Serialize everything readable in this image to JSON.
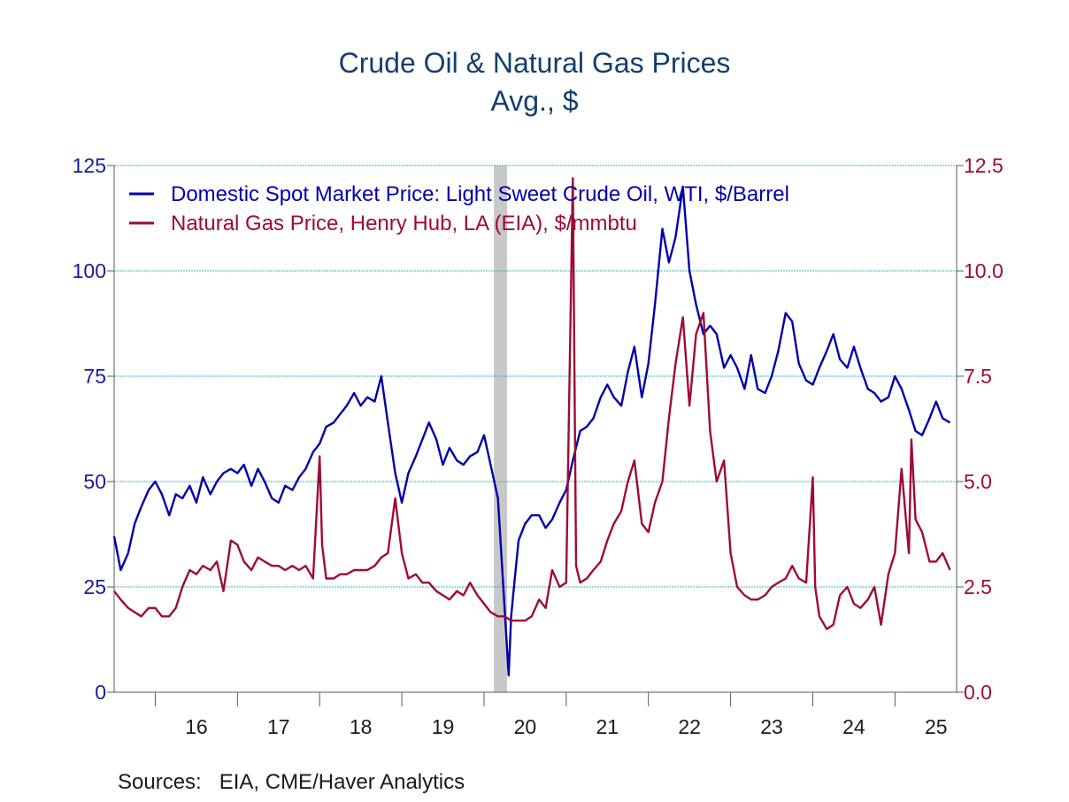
{
  "title": "Crude Oil & Natural Gas Prices",
  "subtitle": "Avg., $",
  "sources_label": "Sources:   EIA, CME/Haver Analytics",
  "colors": {
    "oil": "#0000aa",
    "gas": "#9e0b32",
    "grid": "#2fb5c4",
    "axis": "#5a5a5a",
    "left_axis_text": "#1a1aa0",
    "right_axis_text": "#9e0b32",
    "recession": "#c8c8c8"
  },
  "chart_data": {
    "type": "line",
    "x_range": [
      2015.5,
      2025.75
    ],
    "x_tick_labels": [
      "16",
      "17",
      "18",
      "19",
      "20",
      "21",
      "22",
      "23",
      "24",
      "25"
    ],
    "recession_band": [
      2020.12,
      2020.28
    ],
    "left_axis": {
      "ylim": [
        0,
        125
      ],
      "ticks": [
        "0",
        "25",
        "50",
        "75",
        "100",
        "125"
      ]
    },
    "right_axis": {
      "ylim": [
        0,
        12.5
      ],
      "ticks": [
        "0.0",
        "2.5",
        "5.0",
        "7.5",
        "10.0",
        "12.5"
      ]
    },
    "grid": true,
    "legend_position": "top-left",
    "series": [
      {
        "name": "Domestic Spot Market Price: Light Sweet Crude Oil, WTI, $/Barrel",
        "axis": "left",
        "points": [
          [
            2015.5,
            37
          ],
          [
            2015.58,
            29
          ],
          [
            2015.67,
            33
          ],
          [
            2015.75,
            40
          ],
          [
            2015.83,
            44
          ],
          [
            2015.92,
            48
          ],
          [
            2016.0,
            50
          ],
          [
            2016.08,
            47
          ],
          [
            2016.17,
            42
          ],
          [
            2016.25,
            47
          ],
          [
            2016.33,
            46
          ],
          [
            2016.42,
            49
          ],
          [
            2016.5,
            45
          ],
          [
            2016.58,
            51
          ],
          [
            2016.67,
            47
          ],
          [
            2016.75,
            50
          ],
          [
            2016.83,
            52
          ],
          [
            2016.92,
            53
          ],
          [
            2017.0,
            52
          ],
          [
            2017.08,
            54
          ],
          [
            2017.17,
            49
          ],
          [
            2017.25,
            53
          ],
          [
            2017.33,
            50
          ],
          [
            2017.42,
            46
          ],
          [
            2017.5,
            45
          ],
          [
            2017.58,
            49
          ],
          [
            2017.67,
            48
          ],
          [
            2017.75,
            51
          ],
          [
            2017.83,
            53
          ],
          [
            2017.92,
            57
          ],
          [
            2018.0,
            59
          ],
          [
            2018.08,
            63
          ],
          [
            2018.17,
            64
          ],
          [
            2018.25,
            66
          ],
          [
            2018.33,
            68
          ],
          [
            2018.42,
            71
          ],
          [
            2018.5,
            68
          ],
          [
            2018.58,
            70
          ],
          [
            2018.67,
            69
          ],
          [
            2018.75,
            75
          ],
          [
            2018.83,
            64
          ],
          [
            2018.92,
            52
          ],
          [
            2019.0,
            45
          ],
          [
            2019.08,
            52
          ],
          [
            2019.17,
            56
          ],
          [
            2019.25,
            60
          ],
          [
            2019.33,
            64
          ],
          [
            2019.42,
            60
          ],
          [
            2019.5,
            54
          ],
          [
            2019.58,
            58
          ],
          [
            2019.67,
            55
          ],
          [
            2019.75,
            54
          ],
          [
            2019.83,
            56
          ],
          [
            2019.92,
            57
          ],
          [
            2020.0,
            61
          ],
          [
            2020.08,
            54
          ],
          [
            2020.17,
            46
          ],
          [
            2020.25,
            20
          ],
          [
            2020.3,
            4
          ],
          [
            2020.33,
            18
          ],
          [
            2020.38,
            28
          ],
          [
            2020.42,
            36
          ],
          [
            2020.5,
            40
          ],
          [
            2020.58,
            42
          ],
          [
            2020.67,
            42
          ],
          [
            2020.75,
            39
          ],
          [
            2020.83,
            41
          ],
          [
            2020.92,
            45
          ],
          [
            2021.0,
            48
          ],
          [
            2021.08,
            55
          ],
          [
            2021.17,
            62
          ],
          [
            2021.25,
            63
          ],
          [
            2021.33,
            65
          ],
          [
            2021.42,
            70
          ],
          [
            2021.5,
            73
          ],
          [
            2021.58,
            70
          ],
          [
            2021.67,
            68
          ],
          [
            2021.75,
            76
          ],
          [
            2021.83,
            82
          ],
          [
            2021.92,
            70
          ],
          [
            2022.0,
            78
          ],
          [
            2022.08,
            92
          ],
          [
            2022.17,
            110
          ],
          [
            2022.25,
            102
          ],
          [
            2022.33,
            108
          ],
          [
            2022.42,
            120
          ],
          [
            2022.5,
            100
          ],
          [
            2022.58,
            92
          ],
          [
            2022.67,
            85
          ],
          [
            2022.75,
            87
          ],
          [
            2022.83,
            85
          ],
          [
            2022.92,
            77
          ],
          [
            2023.0,
            80
          ],
          [
            2023.08,
            77
          ],
          [
            2023.17,
            72
          ],
          [
            2023.25,
            80
          ],
          [
            2023.33,
            72
          ],
          [
            2023.42,
            71
          ],
          [
            2023.5,
            75
          ],
          [
            2023.58,
            81
          ],
          [
            2023.67,
            90
          ],
          [
            2023.75,
            88
          ],
          [
            2023.83,
            78
          ],
          [
            2023.92,
            74
          ],
          [
            2024.0,
            73
          ],
          [
            2024.08,
            77
          ],
          [
            2024.17,
            81
          ],
          [
            2024.25,
            85
          ],
          [
            2024.33,
            79
          ],
          [
            2024.42,
            77
          ],
          [
            2024.5,
            82
          ],
          [
            2024.58,
            77
          ],
          [
            2024.67,
            72
          ],
          [
            2024.75,
            71
          ],
          [
            2024.83,
            69
          ],
          [
            2024.92,
            70
          ],
          [
            2025.0,
            75
          ],
          [
            2025.08,
            72
          ],
          [
            2025.17,
            67
          ],
          [
            2025.25,
            62
          ],
          [
            2025.33,
            61
          ],
          [
            2025.42,
            65
          ],
          [
            2025.5,
            69
          ],
          [
            2025.58,
            65
          ],
          [
            2025.67,
            64
          ]
        ]
      },
      {
        "name": "Natural Gas Price, Henry Hub, LA (EIA), $/mmbtu",
        "axis": "right",
        "points": [
          [
            2015.5,
            2.4
          ],
          [
            2015.58,
            2.2
          ],
          [
            2015.67,
            2.0
          ],
          [
            2015.75,
            1.9
          ],
          [
            2015.83,
            1.8
          ],
          [
            2015.92,
            2.0
          ],
          [
            2016.0,
            2.0
          ],
          [
            2016.08,
            1.8
          ],
          [
            2016.17,
            1.8
          ],
          [
            2016.25,
            2.0
          ],
          [
            2016.33,
            2.5
          ],
          [
            2016.42,
            2.9
          ],
          [
            2016.5,
            2.8
          ],
          [
            2016.58,
            3.0
          ],
          [
            2016.67,
            2.9
          ],
          [
            2016.75,
            3.1
          ],
          [
            2016.83,
            2.4
          ],
          [
            2016.92,
            3.6
          ],
          [
            2017.0,
            3.5
          ],
          [
            2017.08,
            3.1
          ],
          [
            2017.17,
            2.9
          ],
          [
            2017.25,
            3.2
          ],
          [
            2017.33,
            3.1
          ],
          [
            2017.42,
            3.0
          ],
          [
            2017.5,
            3.0
          ],
          [
            2017.58,
            2.9
          ],
          [
            2017.67,
            3.0
          ],
          [
            2017.75,
            2.9
          ],
          [
            2017.83,
            3.0
          ],
          [
            2017.92,
            2.7
          ],
          [
            2018.0,
            5.6
          ],
          [
            2018.03,
            3.5
          ],
          [
            2018.08,
            2.7
          ],
          [
            2018.17,
            2.7
          ],
          [
            2018.25,
            2.8
          ],
          [
            2018.33,
            2.8
          ],
          [
            2018.42,
            2.9
          ],
          [
            2018.5,
            2.9
          ],
          [
            2018.58,
            2.9
          ],
          [
            2018.67,
            3.0
          ],
          [
            2018.75,
            3.2
          ],
          [
            2018.83,
            3.3
          ],
          [
            2018.92,
            4.6
          ],
          [
            2019.0,
            3.3
          ],
          [
            2019.08,
            2.7
          ],
          [
            2019.17,
            2.8
          ],
          [
            2019.25,
            2.6
          ],
          [
            2019.33,
            2.6
          ],
          [
            2019.42,
            2.4
          ],
          [
            2019.5,
            2.3
          ],
          [
            2019.58,
            2.2
          ],
          [
            2019.67,
            2.4
          ],
          [
            2019.75,
            2.3
          ],
          [
            2019.83,
            2.6
          ],
          [
            2019.92,
            2.3
          ],
          [
            2020.0,
            2.1
          ],
          [
            2020.08,
            1.9
          ],
          [
            2020.17,
            1.8
          ],
          [
            2020.25,
            1.8
          ],
          [
            2020.33,
            1.7
          ],
          [
            2020.42,
            1.7
          ],
          [
            2020.5,
            1.7
          ],
          [
            2020.58,
            1.8
          ],
          [
            2020.67,
            2.2
          ],
          [
            2020.75,
            2.0
          ],
          [
            2020.83,
            2.9
          ],
          [
            2020.92,
            2.5
          ],
          [
            2021.0,
            2.6
          ],
          [
            2021.08,
            12.2
          ],
          [
            2021.12,
            3.0
          ],
          [
            2021.17,
            2.6
          ],
          [
            2021.25,
            2.7
          ],
          [
            2021.33,
            2.9
          ],
          [
            2021.42,
            3.1
          ],
          [
            2021.5,
            3.6
          ],
          [
            2021.58,
            4.0
          ],
          [
            2021.67,
            4.3
          ],
          [
            2021.75,
            5.0
          ],
          [
            2021.83,
            5.5
          ],
          [
            2021.92,
            4.0
          ],
          [
            2022.0,
            3.8
          ],
          [
            2022.08,
            4.5
          ],
          [
            2022.17,
            5.0
          ],
          [
            2022.25,
            6.5
          ],
          [
            2022.33,
            7.8
          ],
          [
            2022.42,
            8.9
          ],
          [
            2022.5,
            6.8
          ],
          [
            2022.58,
            8.5
          ],
          [
            2022.67,
            9.0
          ],
          [
            2022.75,
            6.2
          ],
          [
            2022.83,
            5.0
          ],
          [
            2022.92,
            5.5
          ],
          [
            2023.0,
            3.3
          ],
          [
            2023.08,
            2.5
          ],
          [
            2023.17,
            2.3
          ],
          [
            2023.25,
            2.2
          ],
          [
            2023.33,
            2.2
          ],
          [
            2023.42,
            2.3
          ],
          [
            2023.5,
            2.5
          ],
          [
            2023.58,
            2.6
          ],
          [
            2023.67,
            2.7
          ],
          [
            2023.75,
            3.0
          ],
          [
            2023.83,
            2.7
          ],
          [
            2023.92,
            2.6
          ],
          [
            2024.0,
            5.1
          ],
          [
            2024.03,
            2.5
          ],
          [
            2024.08,
            1.8
          ],
          [
            2024.17,
            1.5
          ],
          [
            2024.25,
            1.6
          ],
          [
            2024.33,
            2.3
          ],
          [
            2024.42,
            2.5
          ],
          [
            2024.5,
            2.1
          ],
          [
            2024.58,
            2.0
          ],
          [
            2024.67,
            2.2
          ],
          [
            2024.75,
            2.5
          ],
          [
            2024.83,
            1.6
          ],
          [
            2024.92,
            2.8
          ],
          [
            2025.0,
            3.3
          ],
          [
            2025.08,
            5.3
          ],
          [
            2025.17,
            3.3
          ],
          [
            2025.2,
            6.0
          ],
          [
            2025.25,
            4.1
          ],
          [
            2025.33,
            3.8
          ],
          [
            2025.42,
            3.1
          ],
          [
            2025.5,
            3.1
          ],
          [
            2025.58,
            3.3
          ],
          [
            2025.67,
            2.9
          ]
        ]
      }
    ]
  }
}
